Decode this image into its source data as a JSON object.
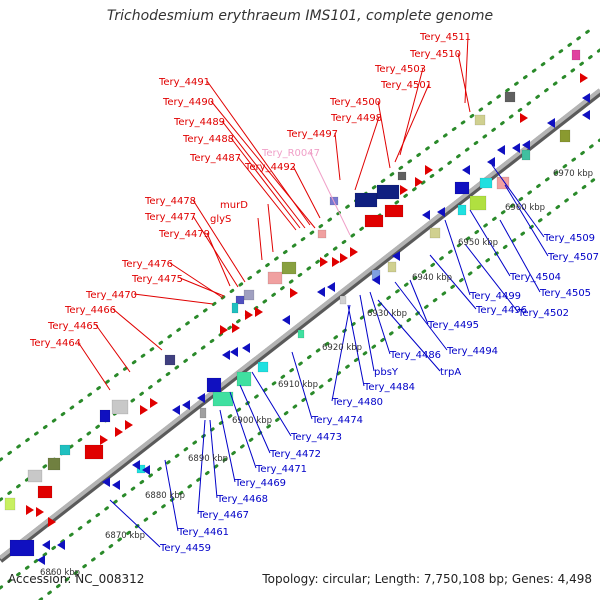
{
  "title": "Trichodesmium erythraeum IMS101, complete genome",
  "footer": {
    "accession": "Accession: NC_008312",
    "summary": "Topology: circular; Length: 7,750,108 bp; Genes: 4,498"
  },
  "colors": {
    "forward_label": "#e00000",
    "reverse_label": "#0000c8",
    "rna_label": "#f0a0c8",
    "backbone": "#8c8c8c",
    "dots": "#2a8a2a"
  },
  "tick_labels": [
    "6860 kbp",
    "6870 kbp",
    "6880 kbp",
    "6890 kbp",
    "6900 kbp",
    "6910 kbp",
    "6920 kbp",
    "6930 kbp",
    "6940 kbp",
    "6950 kbp",
    "6960 kbp",
    "6970 kbp"
  ],
  "forward_genes": [
    "Tery_4511",
    "Tery_4510",
    "Tery_4503",
    "Tery_4501",
    "Tery_4500",
    "Tery_4498",
    "Tery_4497",
    "Tery_4491",
    "Tery_4490",
    "Tery_4489",
    "Tery_4488",
    "Tery_4487",
    "Tery_4492",
    "murD",
    "glyS",
    "Tery_4478",
    "Tery_4477",
    "Tery_4479",
    "Tery_4476",
    "Tery_4475",
    "Tery_4470",
    "Tery_4466",
    "Tery_4465",
    "Tery_4464"
  ],
  "rna_genes": [
    "Tery_R0047"
  ],
  "reverse_genes": [
    "Tery_4509",
    "Tery_4507",
    "Tery_4504",
    "Tery_4505",
    "Tery_4499",
    "Tery_4502",
    "Tery_4496",
    "Tery_4495",
    "Tery_4494",
    "Tery_4486",
    "trpA",
    "pbsY",
    "Tery_4484",
    "Tery_4480",
    "Tery_4474",
    "Tery_4473",
    "Tery_4472",
    "Tery_4471",
    "Tery_4469",
    "Tery_4468",
    "Tery_4467",
    "Tery_4461",
    "Tery_4459"
  ]
}
